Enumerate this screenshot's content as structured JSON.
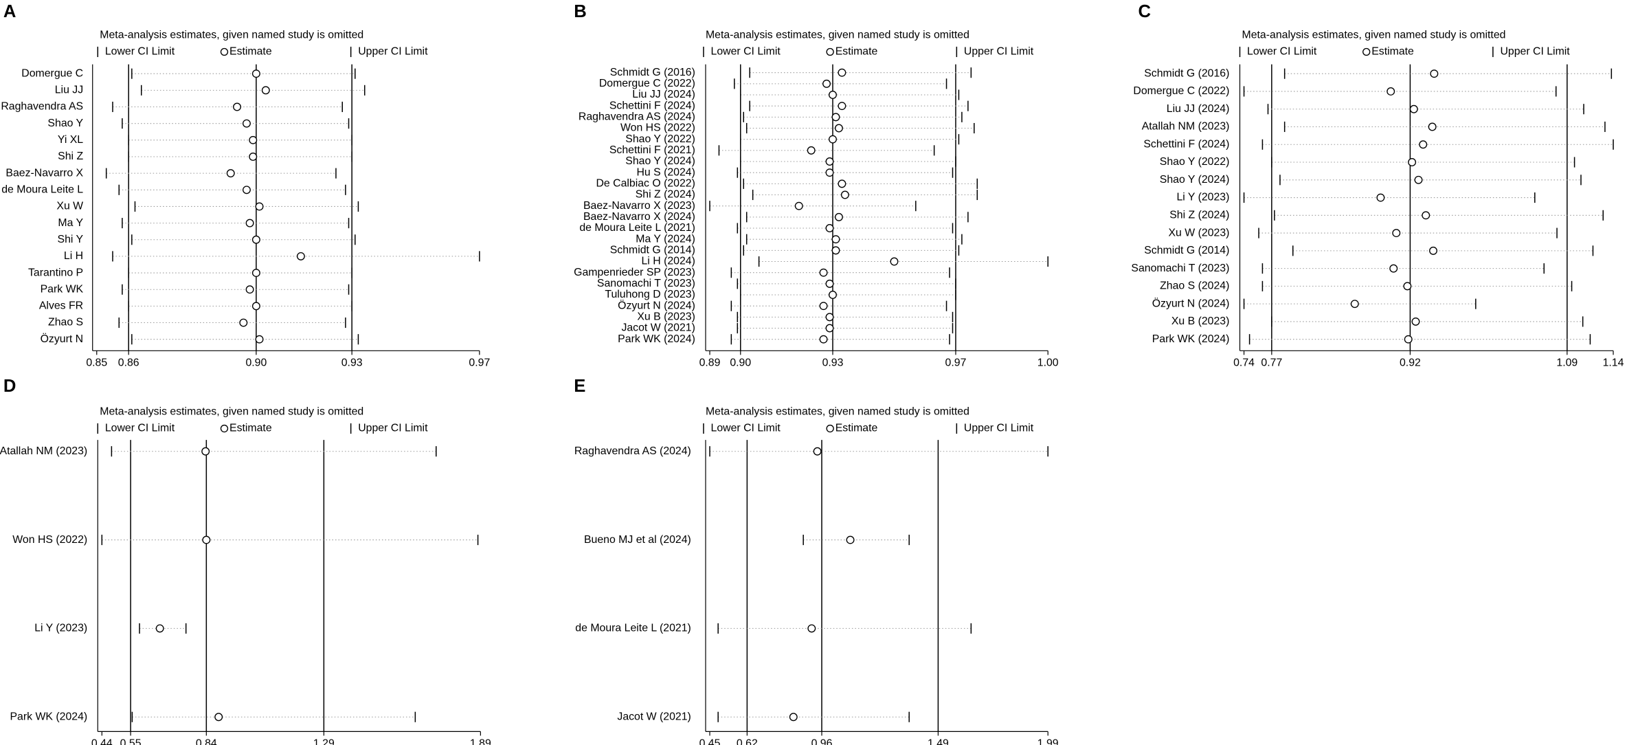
{
  "chart_data": [
    {
      "type": "forest",
      "label": "A",
      "title": "Meta-analysis estimates, given named study is omitted",
      "categories": [
        "Domergue C",
        "Liu JJ",
        "Raghavendra AS",
        "Shao Y",
        "Yi XL",
        "Shi Z",
        "Baez-Navarro X",
        "de Moura Leite L",
        "Xu W",
        "Ma Y",
        "Shi Y",
        "Li H",
        "Tarantino P",
        "Park WK",
        "Alves FR",
        "Zhao S",
        "Özyurt N"
      ],
      "series": [
        {
          "name": "Lower CI Limit",
          "color": "#000000",
          "values": [
            0.861,
            0.864,
            0.855,
            0.858,
            0.86,
            0.86,
            0.853,
            0.857,
            0.862,
            0.858,
            0.861,
            0.855,
            0.86,
            0.858,
            0.86,
            0.857,
            0.861
          ]
        },
        {
          "name": "Estimate",
          "color": "#000000",
          "values": [
            0.9,
            0.903,
            0.894,
            0.897,
            0.899,
            0.899,
            0.892,
            0.897,
            0.901,
            0.898,
            0.9,
            0.914,
            0.9,
            0.898,
            0.9,
            0.896,
            0.901
          ]
        },
        {
          "name": "Upper CI Limit",
          "color": "#000000",
          "values": [
            0.931,
            0.934,
            0.927,
            0.929,
            0.93,
            0.93,
            0.925,
            0.928,
            0.932,
            0.929,
            0.931,
            0.97,
            0.93,
            0.929,
            0.93,
            0.928,
            0.932
          ]
        }
      ],
      "xlim": [
        0.85,
        0.97
      ],
      "xticks": [
        0.85,
        0.86,
        {
          "value": 0.9,
          "label": "0.90"
        },
        0.93,
        0.97
      ]
    },
    {
      "type": "forest",
      "label": "B",
      "title": "Meta-analysis estimates, given named study is omitted",
      "categories": [
        "Schmidt G (2016)",
        "Domergue C (2022)",
        "Liu JJ (2024)",
        "Schettini F (2024)",
        "Raghavendra AS (2024)",
        "Won HS (2022)",
        "Shao Y (2022)",
        "Schettini F (2021)",
        "Shao Y (2024)",
        "Hu S (2024)",
        "De Calbiac O (2022)",
        "Shi Z (2024)",
        "Baez-Navarro X (2023)",
        "Baez-Navarro X (2024)",
        "de Moura Leite L (2021)",
        "Ma Y (2024)",
        "Schmidt G (2014)",
        "Li H (2024)",
        "Gampenrieder SP (2023)",
        "Sanomachi T (2023)",
        "Tuluhong D (2023)",
        "Özyurt N (2024)",
        "Xu B (2023)",
        "Jacot W (2021)",
        "Park WK (2024)"
      ],
      "series": [
        {
          "name": "Lower CI Limit",
          "color": "#000000",
          "values": [
            0.903,
            0.898,
            0.9,
            0.903,
            0.901,
            0.902,
            0.9,
            0.893,
            0.9,
            0.899,
            0.901,
            0.904,
            0.89,
            0.902,
            0.899,
            0.902,
            0.901,
            0.906,
            0.897,
            0.899,
            0.9,
            0.897,
            0.899,
            0.899,
            0.897
          ]
        },
        {
          "name": "Estimate",
          "color": "#000000",
          "values": [
            0.933,
            0.928,
            0.93,
            0.933,
            0.931,
            0.932,
            0.93,
            0.923,
            0.929,
            0.929,
            0.933,
            0.934,
            0.919,
            0.932,
            0.929,
            0.931,
            0.931,
            0.95,
            0.927,
            0.929,
            0.93,
            0.927,
            0.929,
            0.929,
            0.927
          ]
        },
        {
          "name": "Upper CI Limit",
          "color": "#000000",
          "values": [
            0.975,
            0.967,
            0.971,
            0.974,
            0.972,
            0.976,
            0.971,
            0.963,
            0.97,
            0.969,
            0.977,
            0.977,
            0.957,
            0.974,
            0.969,
            0.972,
            0.971,
            1.0,
            0.968,
            0.97,
            0.97,
            0.967,
            0.969,
            0.969,
            0.968
          ]
        }
      ],
      "xlim": [
        0.89,
        1.0
      ],
      "xticks": [
        0.89,
        {
          "value": 0.9,
          "label": "0.90"
        },
        0.93,
        0.97,
        {
          "value": 1.0,
          "label": "1.00"
        }
      ]
    },
    {
      "type": "forest",
      "label": "C",
      "title": "Meta-analysis estimates, given named study is omitted",
      "categories": [
        "Schmidt G (2016)",
        "Domergue C (2022)",
        "Liu JJ (2024)",
        "Atallah NM (2023)",
        "Schettini F (2024)",
        "Shao Y (2022)",
        "Shao Y (2024)",
        "Li Y (2023)",
        "Shi Z (2024)",
        "Xu W (2023)",
        "Schmidt G (2014)",
        "Sanomachi T (2023)",
        "Zhao S (2024)",
        "Özyurt N (2024)",
        "Xu B (2023)",
        "Park WK (2024)"
      ],
      "series": [
        {
          "name": "Lower CI Limit",
          "color": "#000000",
          "values": [
            0.784,
            0.74,
            0.766,
            0.784,
            0.76,
            0.77,
            0.779,
            0.74,
            0.773,
            0.756,
            0.793,
            0.76,
            0.76,
            0.74,
            0.77,
            0.746
          ]
        },
        {
          "name": "Estimate",
          "color": "#000000",
          "values": [
            0.946,
            0.899,
            0.924,
            0.944,
            0.934,
            0.922,
            0.929,
            0.888,
            0.937,
            0.905,
            0.945,
            0.902,
            0.917,
            0.86,
            0.926,
            0.918
          ]
        },
        {
          "name": "Upper CI Limit",
          "color": "#000000",
          "values": [
            1.138,
            1.078,
            1.108,
            1.131,
            1.14,
            1.098,
            1.105,
            1.055,
            1.129,
            1.079,
            1.118,
            1.065,
            1.095,
            0.991,
            1.107,
            1.115
          ]
        }
      ],
      "xlim": [
        0.74,
        1.14
      ],
      "xticks": [
        0.74,
        0.77,
        0.92,
        1.09,
        1.14
      ]
    },
    {
      "type": "forest",
      "label": "D",
      "title": "Meta-analysis estimates, given named study is omitted",
      "categories": [
        "Atallah NM (2023)",
        "Won HS (2022)",
        "Li Y (2023)",
        "Park WK (2024)"
      ],
      "series": [
        {
          "name": "Lower CI Limit",
          "color": "#000000",
          "values": [
            0.477,
            0.44,
            0.584,
            0.556
          ]
        },
        {
          "name": "Estimate",
          "color": "#000000",
          "values": [
            0.837,
            0.84,
            0.662,
            0.887
          ]
        },
        {
          "name": "Upper CI Limit",
          "color": "#000000",
          "values": [
            1.72,
            1.88,
            0.762,
            1.64
          ]
        }
      ],
      "xlim": [
        0.44,
        1.89
      ],
      "xticks": [
        0.44,
        0.55,
        0.84,
        1.29,
        1.89
      ]
    },
    {
      "type": "forest",
      "label": "E",
      "title": "Meta-analysis estimates, given named study is omitted",
      "categories": [
        "Raghavendra AS (2024)",
        "Bueno MJ et al (2024)",
        "de Moura Leite L (2021)",
        "Jacot W (2021)"
      ],
      "series": [
        {
          "name": "Lower CI Limit",
          "color": "#000000",
          "values": [
            0.45,
            0.876,
            0.488,
            0.488
          ]
        },
        {
          "name": "Estimate",
          "color": "#000000",
          "values": [
            0.94,
            1.09,
            0.914,
            0.831
          ]
        },
        {
          "name": "Upper CI Limit",
          "color": "#000000",
          "values": [
            1.99,
            1.358,
            1.64,
            1.358
          ]
        }
      ],
      "xlim": [
        0.45,
        1.99
      ],
      "xticks": [
        0.45,
        0.62,
        0.96,
        1.49,
        1.99
      ]
    }
  ]
}
